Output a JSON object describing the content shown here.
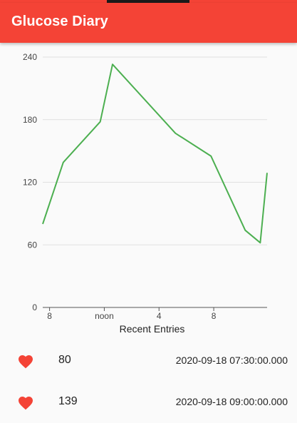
{
  "app": {
    "title": "Glucose Diary",
    "accent": "#f44336"
  },
  "chart_data": {
    "type": "line",
    "xlabel": "Recent Entries",
    "ylabel": "",
    "ylim": [
      0,
      240
    ],
    "yticks": [
      0,
      60,
      120,
      180,
      240
    ],
    "grid": true,
    "xticks": [
      {
        "label": "8",
        "x": 0
      },
      {
        "label": "noon",
        "x": 4
      },
      {
        "label": "4",
        "x": 8
      },
      {
        "label": "8",
        "x": 12
      }
    ],
    "xlim": [
      -0.5,
      15.9
    ],
    "series": [
      {
        "color": "#4caf50",
        "points": [
          {
            "x": -0.5,
            "y": 80
          },
          {
            "x": 1.0,
            "y": 139
          },
          {
            "x": 3.7,
            "y": 178
          },
          {
            "x": 4.6,
            "y": 233
          },
          {
            "x": 9.2,
            "y": 167
          },
          {
            "x": 11.8,
            "y": 145
          },
          {
            "x": 14.3,
            "y": 74
          },
          {
            "x": 15.4,
            "y": 62
          },
          {
            "x": 15.9,
            "y": 129
          }
        ]
      }
    ]
  },
  "entries": [
    {
      "value": "80",
      "timestamp": "2020-09-18 07:30:00.000"
    },
    {
      "value": "139",
      "timestamp": "2020-09-18 09:00:00.000"
    }
  ]
}
